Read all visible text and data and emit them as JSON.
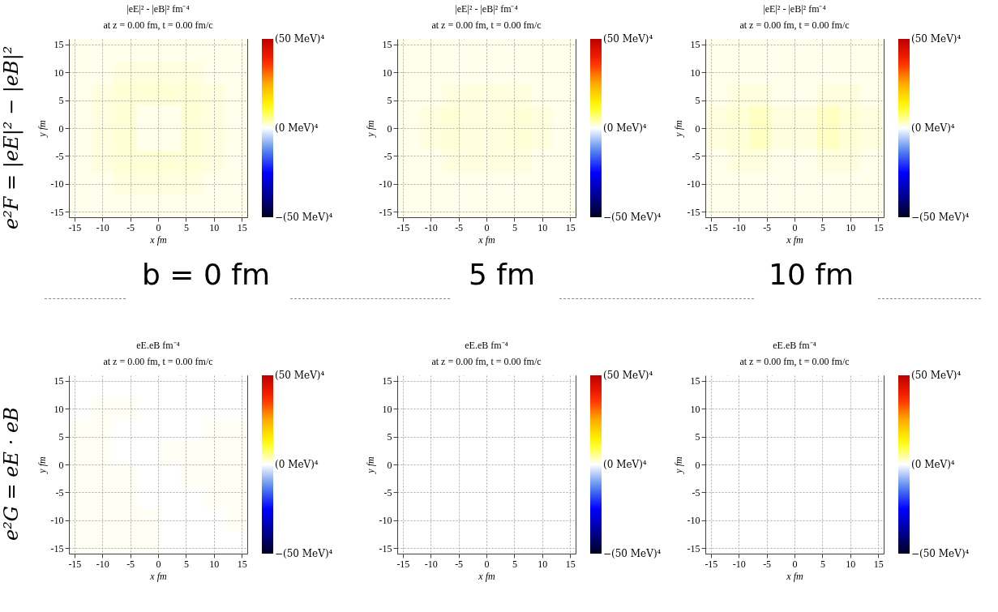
{
  "chart_data": [
    {
      "type": "heatmap",
      "title": "|eE|² - |eB|² fm⁻⁴",
      "subtitle": "at z = 0.00 fm, t = 0.00 fm/c",
      "xlabel": "x fm",
      "ylabel": "y fm",
      "annotations": [
        "e²F = |eE|² − |eB|²",
        "b = 0 fm"
      ],
      "x": [
        -14,
        -10,
        -6,
        -2,
        2,
        6,
        10,
        14
      ],
      "y": [
        14,
        10,
        6,
        2,
        -2,
        -6,
        -10,
        -14
      ],
      "cells": [
        [
          1,
          1,
          1,
          1,
          1,
          1,
          1,
          1
        ],
        [
          1,
          1,
          1.5,
          1.5,
          1.5,
          1.5,
          1,
          1
        ],
        [
          1,
          1.5,
          2,
          2,
          2,
          2,
          1.5,
          1
        ],
        [
          1,
          1.5,
          2,
          1,
          1,
          2,
          1.5,
          1
        ],
        [
          1,
          1.5,
          2,
          1,
          1,
          2,
          1.5,
          1
        ],
        [
          1,
          1.5,
          2,
          2,
          2,
          2,
          1.5,
          1
        ],
        [
          1,
          1,
          1.5,
          1.5,
          1.5,
          1.5,
          1,
          1
        ],
        [
          1,
          1,
          1,
          1,
          1,
          1,
          1,
          1
        ]
      ],
      "xlim": [
        -16,
        16
      ],
      "ylim": [
        -16,
        16
      ],
      "xticks": [
        -15,
        -10,
        -5,
        0,
        5,
        10,
        15
      ],
      "yticks": [
        -15,
        -10,
        -5,
        0,
        5,
        10,
        15
      ],
      "grid": true,
      "clim": [
        -50,
        50
      ],
      "cticks": [
        {
          "value": -50,
          "label": "−(50 MeV)⁴"
        },
        {
          "value": 0,
          "label": "(0 MeV)⁴"
        },
        {
          "value": 50,
          "label": "(50 MeV)⁴"
        }
      ]
    },
    {
      "type": "heatmap",
      "title": "|eE|² - |eB|² fm⁻⁴",
      "subtitle": "at z = 0.00 fm, t = 0.00 fm/c",
      "xlabel": "x fm",
      "ylabel": "y fm",
      "annotations": [
        "5 fm"
      ],
      "x": [
        -14,
        -10,
        -6,
        -2,
        2,
        6,
        10,
        14
      ],
      "y": [
        14,
        10,
        6,
        2,
        -2,
        -6,
        -10,
        -14
      ],
      "cells": [
        [
          1,
          1,
          1,
          1,
          1,
          1,
          1,
          1
        ],
        [
          1,
          1,
          1,
          1,
          1,
          1,
          1,
          1
        ],
        [
          1,
          1,
          1.5,
          1.5,
          1.5,
          1.5,
          1,
          1
        ],
        [
          1,
          1.5,
          2,
          1.5,
          1.5,
          2,
          1.5,
          1
        ],
        [
          1,
          1.5,
          2,
          1.5,
          1.5,
          2,
          1.5,
          1
        ],
        [
          1,
          1,
          1.5,
          1.5,
          1.5,
          1.5,
          1,
          1
        ],
        [
          1,
          1,
          1,
          1,
          1,
          1,
          1,
          1
        ],
        [
          1,
          1,
          1,
          1,
          1,
          1,
          1,
          1
        ]
      ],
      "xlim": [
        -16,
        16
      ],
      "ylim": [
        -16,
        16
      ],
      "xticks": [
        -15,
        -10,
        -5,
        0,
        5,
        10,
        15
      ],
      "yticks": [
        -15,
        -10,
        -5,
        0,
        5,
        10,
        15
      ],
      "grid": true,
      "clim": [
        -50,
        50
      ],
      "cticks": [
        {
          "value": -50,
          "label": "−(50 MeV)⁴"
        },
        {
          "value": 0,
          "label": "(0 MeV)⁴"
        },
        {
          "value": 50,
          "label": "(50 MeV)⁴"
        }
      ]
    },
    {
      "type": "heatmap",
      "title": "|eE|² - |eB|² fm⁻⁴",
      "subtitle": "at z = 0.00 fm, t = 0.00 fm/c",
      "xlabel": "x fm",
      "ylabel": "y fm",
      "annotations": [
        "10 fm"
      ],
      "x": [
        -14,
        -10,
        -6,
        -2,
        2,
        6,
        10,
        14
      ],
      "y": [
        14,
        10,
        6,
        2,
        -2,
        -6,
        -10,
        -14
      ],
      "cells": [
        [
          1,
          1,
          1,
          1,
          1,
          1,
          1,
          1
        ],
        [
          1,
          1,
          1,
          1,
          1,
          1,
          1,
          1
        ],
        [
          1,
          1.5,
          1.5,
          1,
          1,
          1.5,
          1.5,
          1
        ],
        [
          1.5,
          2,
          3,
          1.5,
          1.5,
          3,
          2,
          1.5
        ],
        [
          1.5,
          2,
          3,
          1.5,
          1.5,
          3,
          2,
          1.5
        ],
        [
          1,
          1.5,
          1.5,
          1,
          1,
          1.5,
          1.5,
          1
        ],
        [
          1,
          1,
          1,
          1,
          1,
          1,
          1,
          1
        ],
        [
          1,
          1,
          1,
          1,
          1,
          1,
          1,
          1
        ]
      ],
      "xlim": [
        -16,
        16
      ],
      "ylim": [
        -16,
        16
      ],
      "xticks": [
        -15,
        -10,
        -5,
        0,
        5,
        10,
        15
      ],
      "yticks": [
        -15,
        -10,
        -5,
        0,
        5,
        10,
        15
      ],
      "grid": true,
      "clim": [
        -50,
        50
      ],
      "cticks": [
        {
          "value": -50,
          "label": "−(50 MeV)⁴"
        },
        {
          "value": 0,
          "label": "(0 MeV)⁴"
        },
        {
          "value": 50,
          "label": "(50 MeV)⁴"
        }
      ]
    },
    {
      "type": "heatmap",
      "title": "eE.eB fm⁻⁴",
      "subtitle": "at z = 0.00 fm, t = 0.00 fm/c",
      "xlabel": "x fm",
      "ylabel": "y fm",
      "annotations": [
        "e²G = eE · eB"
      ],
      "x": [
        -14,
        -10,
        -6,
        -2,
        2,
        6,
        10,
        14
      ],
      "y": [
        14,
        10,
        6,
        2,
        -2,
        -6,
        -10,
        -14
      ],
      "cells": [
        [
          0,
          0,
          0,
          0,
          0,
          0,
          0,
          0
        ],
        [
          0,
          0.5,
          0.5,
          0,
          0,
          0,
          0,
          0
        ],
        [
          0.5,
          0.5,
          0,
          0,
          0,
          0,
          0.5,
          0.5
        ],
        [
          0.5,
          0.5,
          0,
          0,
          0.5,
          0.5,
          0.5,
          0.5
        ],
        [
          0.5,
          0.5,
          0.5,
          0,
          0,
          0.5,
          0.5,
          0.5
        ],
        [
          0.5,
          0.5,
          0.5,
          0,
          0,
          0,
          0.5,
          0.5
        ],
        [
          0.5,
          0.5,
          0.5,
          0.5,
          0,
          0,
          0,
          0.5
        ],
        [
          0.5,
          0.5,
          0.5,
          0.5,
          0,
          0,
          0,
          0
        ]
      ],
      "xlim": [
        -16,
        16
      ],
      "ylim": [
        -16,
        16
      ],
      "xticks": [
        -15,
        -10,
        -5,
        0,
        5,
        10,
        15
      ],
      "yticks": [
        -15,
        -10,
        -5,
        0,
        5,
        10,
        15
      ],
      "grid": true,
      "clim": [
        -50,
        50
      ],
      "cticks": [
        {
          "value": -50,
          "label": "−(50 MeV)⁴"
        },
        {
          "value": 0,
          "label": "(0 MeV)⁴"
        },
        {
          "value": 50,
          "label": "(50 MeV)⁴"
        }
      ]
    },
    {
      "type": "heatmap",
      "title": "eE.eB fm⁻⁴",
      "subtitle": "at z = 0.00 fm, t = 0.00 fm/c",
      "xlabel": "x fm",
      "ylabel": "y fm",
      "x": [
        -14,
        -10,
        -6,
        -2,
        2,
        6,
        10,
        14
      ],
      "y": [
        14,
        10,
        6,
        2,
        -2,
        -6,
        -10,
        -14
      ],
      "cells": [
        [
          0,
          0,
          0,
          0,
          0,
          0,
          0,
          0
        ],
        [
          0,
          0,
          0,
          0,
          0,
          0,
          0,
          0
        ],
        [
          0,
          0,
          0,
          0,
          0,
          0,
          0,
          0
        ],
        [
          0,
          0,
          0,
          0,
          0,
          0,
          0,
          0
        ],
        [
          0,
          0,
          0,
          0,
          0,
          0,
          0,
          0
        ],
        [
          0,
          0,
          0,
          0,
          0,
          0,
          0,
          0
        ],
        [
          0,
          0,
          0,
          0,
          0,
          0,
          0,
          0
        ],
        [
          0,
          0,
          0,
          0,
          0,
          0,
          0,
          0
        ]
      ],
      "xlim": [
        -16,
        16
      ],
      "ylim": [
        -16,
        16
      ],
      "xticks": [
        -15,
        -10,
        -5,
        0,
        5,
        10,
        15
      ],
      "yticks": [
        -15,
        -10,
        -5,
        0,
        5,
        10,
        15
      ],
      "grid": true,
      "clim": [
        -50,
        50
      ],
      "cticks": [
        {
          "value": -50,
          "label": "−(50 MeV)⁴"
        },
        {
          "value": 0,
          "label": "(0 MeV)⁴"
        },
        {
          "value": 50,
          "label": "(50 MeV)⁴"
        }
      ]
    },
    {
      "type": "heatmap",
      "title": "eE.eB fm⁻⁴",
      "subtitle": "at z = 0.00 fm, t = 0.00 fm/c",
      "xlabel": "x fm",
      "ylabel": "y fm",
      "x": [
        -14,
        -10,
        -6,
        -2,
        2,
        6,
        10,
        14
      ],
      "y": [
        14,
        10,
        6,
        2,
        -2,
        -6,
        -10,
        -14
      ],
      "cells": [
        [
          0,
          0,
          0,
          0,
          0,
          0,
          0,
          0
        ],
        [
          0,
          0,
          0,
          0,
          0,
          0,
          0,
          0
        ],
        [
          0,
          0,
          0,
          0,
          0,
          0,
          0,
          0
        ],
        [
          0,
          0,
          0,
          0,
          0,
          0,
          0,
          0
        ],
        [
          0,
          0,
          0,
          0,
          0,
          0,
          0,
          0
        ],
        [
          0,
          0,
          0,
          0,
          0,
          0,
          0,
          0
        ],
        [
          0,
          0,
          0,
          0,
          0,
          0,
          0,
          0
        ],
        [
          0,
          0,
          0,
          0,
          0,
          0,
          0,
          0
        ]
      ],
      "xlim": [
        -16,
        16
      ],
      "ylim": [
        -16,
        16
      ],
      "xticks": [
        -15,
        -10,
        -5,
        0,
        5,
        10,
        15
      ],
      "yticks": [
        -15,
        -10,
        -5,
        0,
        5,
        10,
        15
      ],
      "grid": true,
      "clim": [
        -50,
        50
      ],
      "cticks": [
        {
          "value": -50,
          "label": "−(50 MeV)⁴"
        },
        {
          "value": 0,
          "label": "(0 MeV)⁴"
        },
        {
          "value": 50,
          "label": "(50 MeV)⁴"
        }
      ]
    }
  ]
}
